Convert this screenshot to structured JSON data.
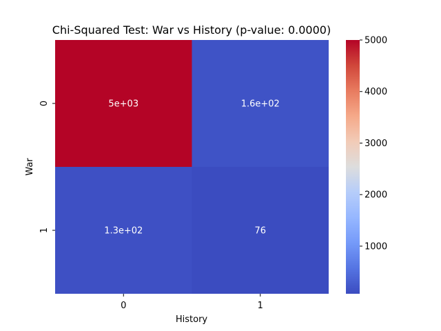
{
  "chart_data": {
    "type": "heatmap",
    "title": "Chi-Squared Test: War vs History (p-value: 0.0000)",
    "xlabel": "History",
    "ylabel": "War",
    "x_categories": [
      "0",
      "1"
    ],
    "y_categories": [
      "0",
      "1"
    ],
    "values": [
      [
        5000,
        160
      ],
      [
        130,
        76
      ]
    ],
    "annotations": [
      [
        "5e+03",
        "1.6e+02"
      ],
      [
        "1.3e+02",
        "76"
      ]
    ],
    "colormap": "coolwarm",
    "color_range": [
      76,
      5000
    ],
    "colorbar_ticks": [
      1000,
      2000,
      3000,
      4000,
      5000
    ],
    "colorbar_tick_labels": [
      "1000",
      "2000",
      "3000",
      "4000",
      "5000"
    ],
    "annotation_color": "#ffffff"
  }
}
